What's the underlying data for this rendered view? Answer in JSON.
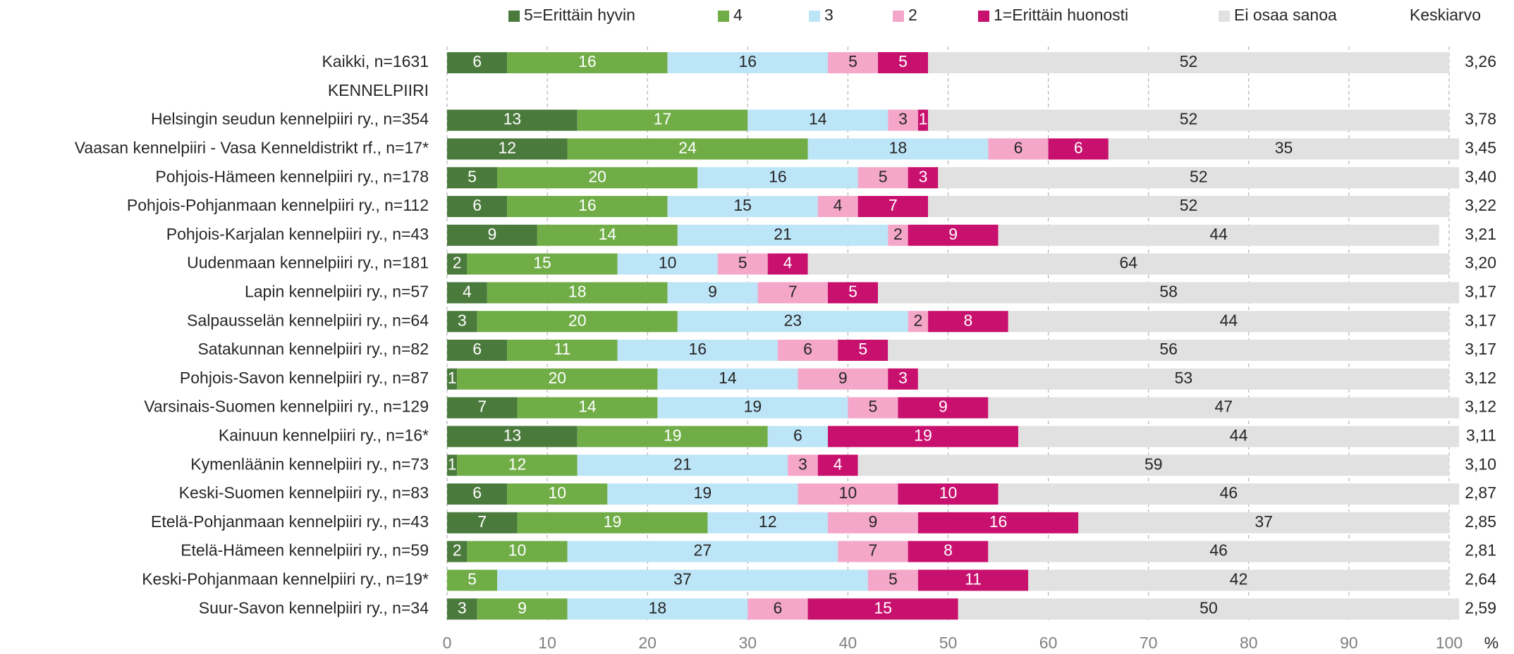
{
  "chart_data": {
    "type": "stacked_barh",
    "categories": [
      "Kaikki, n=1631",
      "KENNELPIIRI",
      "Helsingin seudun kennelpiiri ry., n=354",
      "Vaasan kennelpiiri - Vasa Kenneldistrikt rf., n=17*",
      "Pohjois-Hämeen kennelpiiri ry., n=178",
      "Pohjois-Pohjanmaan kennelpiiri ry., n=112",
      "Pohjois-Karjalan kennelpiiri ry., n=43",
      "Uudenmaan kennelpiiri ry., n=181",
      "Lapin kennelpiiri ry., n=57",
      "Salpausselän kennelpiiri ry., n=64",
      "Satakunnan kennelpiiri ry., n=82",
      "Pohjois-Savon kennelpiiri ry., n=87",
      "Varsinais-Suomen kennelpiiri ry., n=129",
      "Kainuun kennelpiiri ry., n=16*",
      "Kymenläänin kennelpiiri ry., n=73",
      "Keski-Suomen kennelpiiri ry., n=83",
      "Etelä-Pohjanmaan kennelpiiri ry., n=43",
      "Etelä-Hämeen kennelpiiri ry., n=59",
      "Keski-Pohjanmaan kennelpiiri ry., n=19*",
      "Suur-Savon kennelpiiri ry., n=34"
    ],
    "series": [
      {
        "name": "5=Erittäin hyvin",
        "color": "#4b7a3d",
        "values": [
          6,
          null,
          13,
          12,
          5,
          6,
          9,
          2,
          4,
          3,
          6,
          1,
          7,
          13,
          1,
          6,
          7,
          2,
          null,
          3
        ]
      },
      {
        "name": "4",
        "color": "#70ad47",
        "values": [
          16,
          null,
          17,
          24,
          20,
          16,
          14,
          15,
          18,
          20,
          11,
          20,
          14,
          19,
          12,
          10,
          19,
          10,
          5,
          9
        ]
      },
      {
        "name": "3",
        "color": "#bde5f8",
        "values": [
          16,
          null,
          14,
          18,
          16,
          15,
          21,
          10,
          9,
          23,
          16,
          14,
          19,
          6,
          21,
          19,
          12,
          27,
          37,
          18
        ]
      },
      {
        "name": "2",
        "color": "#f4a7c9",
        "values": [
          5,
          null,
          3,
          6,
          5,
          4,
          2,
          5,
          7,
          2,
          6,
          9,
          5,
          null,
          3,
          10,
          9,
          7,
          5,
          6
        ]
      },
      {
        "name": "1=Erittäin huonosti",
        "color": "#c8106e",
        "values": [
          5,
          null,
          1,
          6,
          3,
          7,
          9,
          4,
          5,
          8,
          5,
          3,
          9,
          19,
          4,
          10,
          16,
          8,
          11,
          15
        ]
      },
      {
        "name": "Ei osaa sanoa",
        "color": "#e1e1e1",
        "values": [
          52,
          null,
          52,
          35,
          52,
          52,
          44,
          64,
          58,
          44,
          56,
          53,
          47,
          44,
          59,
          46,
          37,
          46,
          42,
          50
        ]
      }
    ],
    "mean_header": "Keskiarvo",
    "means": [
      "3,26",
      null,
      "3,78",
      "3,45",
      "3,40",
      "3,22",
      "3,21",
      "3,20",
      "3,17",
      "3,17",
      "3,17",
      "3,12",
      "3,12",
      "3,11",
      "3,10",
      "2,87",
      "2,85",
      "2,81",
      "2,64",
      "2,59"
    ],
    "xlim": [
      0,
      100
    ],
    "xticks": [
      0,
      10,
      20,
      30,
      40,
      50,
      60,
      70,
      80,
      90,
      100
    ],
    "x_unit": "%",
    "grid": true
  }
}
